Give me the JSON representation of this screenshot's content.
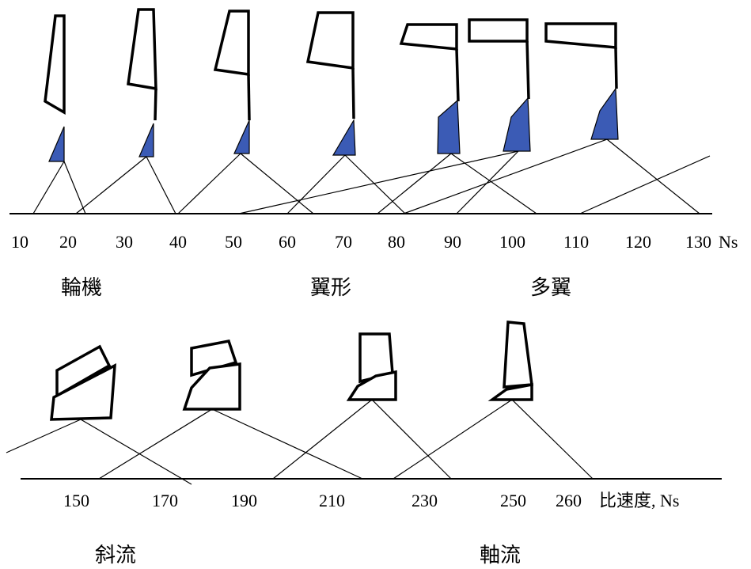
{
  "top_scale": {
    "ticks": [
      "10",
      "20",
      "30",
      "40",
      "50",
      "60",
      "70",
      "80",
      "90",
      "100",
      "110",
      "120",
      "130"
    ],
    "unit": "Ns"
  },
  "top_categories": [
    "輪機",
    "翼形",
    "多翼"
  ],
  "bottom_scale": {
    "ticks": [
      "150",
      "170",
      "190",
      "210",
      "230",
      "250",
      "260"
    ],
    "unit": "比速度, Ns"
  },
  "bottom_categories": [
    "斜流",
    "軸流"
  ],
  "colors": {
    "hub_fill": "#3b5bb5",
    "outline": "#000000",
    "background": "#ffffff"
  }
}
